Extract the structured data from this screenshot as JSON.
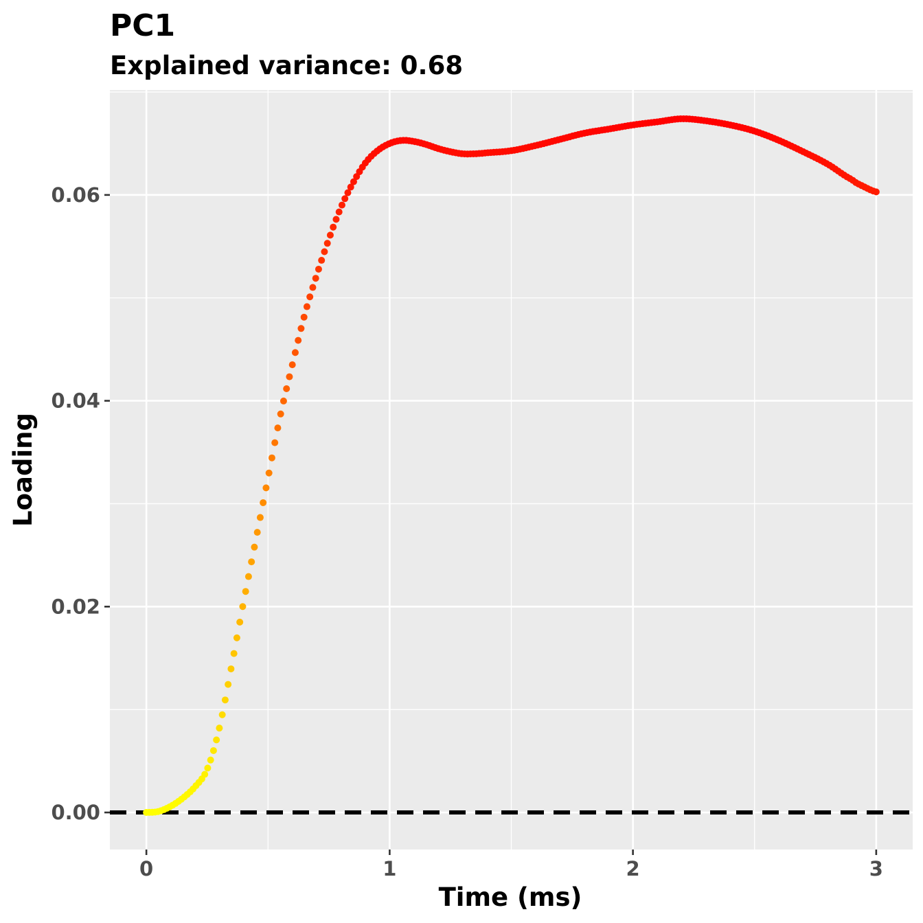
{
  "chart_data": {
    "type": "scatter",
    "title": "PC1",
    "subtitle": "Explained variance: 0.68",
    "xlabel": "Time (ms)",
    "ylabel": "Loading",
    "xlim": [
      -0.15,
      3.15
    ],
    "ylim": [
      -0.0036,
      0.0702
    ],
    "x_ticks": [
      0,
      1,
      2,
      3
    ],
    "x_tick_labels": [
      "0",
      "1",
      "2",
      "3"
    ],
    "y_ticks": [
      0.0,
      0.02,
      0.04,
      0.06
    ],
    "y_tick_labels": [
      "0.00",
      "0.02",
      "0.04",
      "0.06"
    ],
    "grid": true,
    "reference_line": {
      "y": 0,
      "style": "dashed",
      "color": "#000000"
    },
    "color_scale": {
      "low": "#ffff00",
      "high": "#ff0000",
      "mapped_to": "y"
    },
    "point_spacing_ms": 0.012,
    "series": [
      {
        "points": [
          [
            0.0,
            0.0
          ],
          [
            0.05,
            0.0001
          ],
          [
            0.1,
            0.0006
          ],
          [
            0.15,
            0.0014
          ],
          [
            0.2,
            0.0025
          ],
          [
            0.25,
            0.0042
          ],
          [
            0.3,
            0.0082
          ],
          [
            0.35,
            0.0142
          ],
          [
            0.4,
            0.0205
          ],
          [
            0.45,
            0.0265
          ],
          [
            0.5,
            0.0325
          ],
          [
            0.55,
            0.0385
          ],
          [
            0.6,
            0.0435
          ],
          [
            0.65,
            0.0483
          ],
          [
            0.7,
            0.0522
          ],
          [
            0.75,
            0.0557
          ],
          [
            0.8,
            0.0588
          ],
          [
            0.85,
            0.0612
          ],
          [
            0.9,
            0.0631
          ],
          [
            0.95,
            0.0643
          ],
          [
            1.0,
            0.065
          ],
          [
            1.05,
            0.0653
          ],
          [
            1.1,
            0.0652
          ],
          [
            1.15,
            0.0649
          ],
          [
            1.2,
            0.0645
          ],
          [
            1.25,
            0.0642
          ],
          [
            1.3,
            0.064
          ],
          [
            1.35,
            0.064
          ],
          [
            1.4,
            0.0641
          ],
          [
            1.5,
            0.0643
          ],
          [
            1.6,
            0.0648
          ],
          [
            1.7,
            0.0654
          ],
          [
            1.8,
            0.066
          ],
          [
            1.9,
            0.0664
          ],
          [
            2.0,
            0.0668
          ],
          [
            2.1,
            0.0671
          ],
          [
            2.2,
            0.0674
          ],
          [
            2.3,
            0.0672
          ],
          [
            2.4,
            0.0668
          ],
          [
            2.5,
            0.0662
          ],
          [
            2.6,
            0.0653
          ],
          [
            2.7,
            0.0642
          ],
          [
            2.8,
            0.063
          ],
          [
            2.9,
            0.0615
          ],
          [
            2.95,
            0.0608
          ],
          [
            3.0,
            0.0603
          ]
        ]
      }
    ]
  }
}
